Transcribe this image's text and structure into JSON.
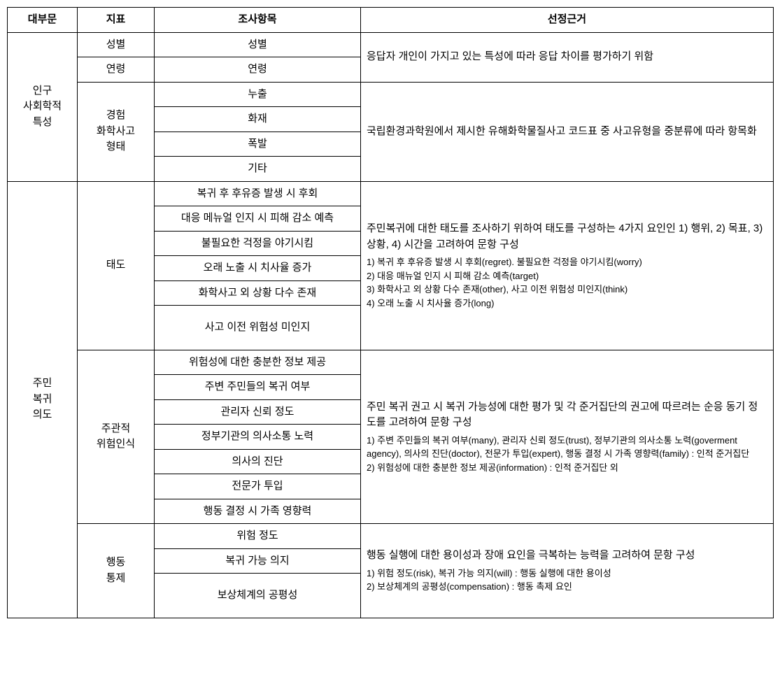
{
  "headers": {
    "category": "대부문",
    "indicator": "지표",
    "item": "조사항목",
    "basis": "선정근거"
  },
  "cat1": {
    "label": "인구\n사회학적\n특성",
    "ind1": {
      "label": "성별",
      "item": "성별"
    },
    "ind2": {
      "label": "연령",
      "item": "연령"
    },
    "basis12": "응답자 개인이 가지고 있는 특성에 따라 응답 차이를 평가하기 위함",
    "ind3": {
      "label": "경험\n화학사고\n형태",
      "items": {
        "a": "누출",
        "b": "화재",
        "c": "폭발",
        "d": "기타"
      },
      "basis": "국립환경과학원에서 제시한 유해화학물질사고 코드표 중 사고유형을 중분류에 따라 항목화"
    }
  },
  "cat2": {
    "label": "주민\n복귀\n의도",
    "att": {
      "label": "태도",
      "items": {
        "a": "복귀 후 후유증 발생 시 후회",
        "b": "대응 메뉴얼 인지 시 피해 감소 예측",
        "c": "불필요한 걱정을 야기시킴",
        "d": "오래 노출 시 치사율 증가",
        "e": "화학사고 외 상황 다수 존재",
        "f": "사고 이전 위험성 미인지"
      },
      "basis_main": "주민복귀에 대한 태도를 조사하기 위하여 태도를 구성하는 4가지 요인인 1) 행위, 2) 목표, 3) 상황, 4) 시간을 고려하여 문항 구성",
      "basis_sub": "1) 복귀 후 후유증 발생 시 후회(regret). 불필요한 걱정을 야기시킴(worry)\n2) 대응 매뉴얼 인지 시 피해 감소 예측(target)\n3) 화학사고 외 상황 다수 존재(other), 사고 이전 위험성 미인지(think)\n4) 오래 노출 시 치사율 증가(long)"
    },
    "risk": {
      "label": "주관적\n위험인식",
      "items": {
        "a": "위험성에 대한 충분한 정보 제공",
        "b": "주변 주민들의 복귀 여부",
        "c": "관리자 신뢰 정도",
        "d": "정부기관의 의사소통 노력",
        "e": "의사의 진단",
        "f": "전문가 투입",
        "g": "행동 결정 시 가족 영향력"
      },
      "basis_main": "주민 복귀 권고 시 복귀 가능성에 대한 평가 및 각 준거집단의 권고에 따르려는 순응 동기 정도를 고려하여 문항 구성",
      "basis_sub": "1) 주변 주민들의 복귀 여부(many), 관리자 신뢰 정도(trust), 정부기관의 의사소통 노력(goverment agency), 의사의 진단(doctor), 전문가 투입(expert), 행동 결정 시 가족 영향력(family) : 인적 준거집단\n2) 위험성에 대한 충분한 정보 제공(information) : 인적 준거집단 외"
    },
    "ctrl": {
      "label": "행동\n통제",
      "items": {
        "a": "위험 정도",
        "b": "복귀 가능 의지",
        "c": "보상체계의 공평성"
      },
      "basis_main": "행동 실행에 대한 용이성과 장애 요인을 극복하는 능력을 고려하여 문항 구성",
      "basis_sub": "1) 위험 정도(risk), 복귀 가능 의지(will) : 행동 실행에 대한 용이성\n2) 보상체계의 공평성(compensation) : 행동 촉제 요인"
    }
  }
}
